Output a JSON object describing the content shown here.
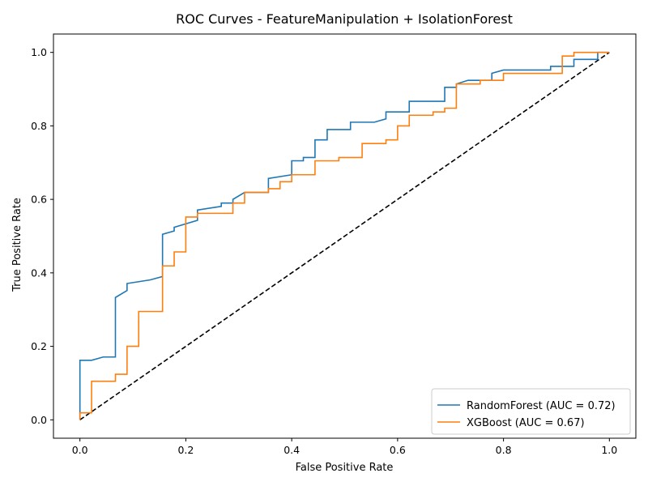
{
  "chart_data": {
    "type": "line",
    "title": "ROC Curves - FeatureManipulation + IsolationForest",
    "xlabel": "False Positive Rate",
    "ylabel": "True Positive Rate",
    "xlim": [
      -0.05,
      1.05
    ],
    "ylim": [
      -0.05,
      1.05
    ],
    "xticks": [
      0.0,
      0.2,
      0.4,
      0.6,
      0.8,
      1.0
    ],
    "yticks": [
      0.0,
      0.2,
      0.4,
      0.6,
      0.8,
      1.0
    ],
    "xtick_labels": [
      "0.0",
      "0.2",
      "0.4",
      "0.6",
      "0.8",
      "1.0"
    ],
    "ytick_labels": [
      "0.0",
      "0.2",
      "0.4",
      "0.6",
      "0.8",
      "1.0"
    ],
    "grid": false,
    "legend_position": "lower-right",
    "series": [
      {
        "name": "RandomForest (AUC = 0.72)",
        "color": "#1f77b4",
        "points": [
          [
            0.0,
            0.0
          ],
          [
            0.0,
            0.162
          ],
          [
            0.022,
            0.162
          ],
          [
            0.044,
            0.171
          ],
          [
            0.067,
            0.171
          ],
          [
            0.067,
            0.333
          ],
          [
            0.089,
            0.352
          ],
          [
            0.089,
            0.371
          ],
          [
            0.133,
            0.381
          ],
          [
            0.156,
            0.39
          ],
          [
            0.156,
            0.505
          ],
          [
            0.178,
            0.514
          ],
          [
            0.178,
            0.524
          ],
          [
            0.222,
            0.543
          ],
          [
            0.222,
            0.571
          ],
          [
            0.267,
            0.581
          ],
          [
            0.267,
            0.59
          ],
          [
            0.289,
            0.59
          ],
          [
            0.289,
            0.6
          ],
          [
            0.311,
            0.619
          ],
          [
            0.356,
            0.619
          ],
          [
            0.356,
            0.657
          ],
          [
            0.4,
            0.667
          ],
          [
            0.4,
            0.705
          ],
          [
            0.422,
            0.705
          ],
          [
            0.422,
            0.714
          ],
          [
            0.444,
            0.714
          ],
          [
            0.444,
            0.762
          ],
          [
            0.467,
            0.762
          ],
          [
            0.467,
            0.79
          ],
          [
            0.511,
            0.79
          ],
          [
            0.511,
            0.81
          ],
          [
            0.556,
            0.81
          ],
          [
            0.578,
            0.819
          ],
          [
            0.578,
            0.838
          ],
          [
            0.622,
            0.838
          ],
          [
            0.622,
            0.867
          ],
          [
            0.689,
            0.867
          ],
          [
            0.689,
            0.905
          ],
          [
            0.711,
            0.905
          ],
          [
            0.711,
            0.914
          ],
          [
            0.733,
            0.924
          ],
          [
            0.778,
            0.924
          ],
          [
            0.778,
            0.943
          ],
          [
            0.8,
            0.952
          ],
          [
            0.889,
            0.952
          ],
          [
            0.889,
            0.962
          ],
          [
            0.933,
            0.962
          ],
          [
            0.933,
            0.981
          ],
          [
            0.978,
            0.981
          ],
          [
            0.978,
            1.0
          ],
          [
            1.0,
            1.0
          ]
        ]
      },
      {
        "name": "XGBoost (AUC = 0.67)",
        "color": "#ff7f0e",
        "points": [
          [
            0.0,
            0.0
          ],
          [
            0.0,
            0.019
          ],
          [
            0.022,
            0.019
          ],
          [
            0.022,
            0.105
          ],
          [
            0.067,
            0.105
          ],
          [
            0.067,
            0.124
          ],
          [
            0.089,
            0.124
          ],
          [
            0.089,
            0.2
          ],
          [
            0.111,
            0.2
          ],
          [
            0.111,
            0.295
          ],
          [
            0.156,
            0.295
          ],
          [
            0.156,
            0.419
          ],
          [
            0.178,
            0.419
          ],
          [
            0.178,
            0.457
          ],
          [
            0.2,
            0.457
          ],
          [
            0.2,
            0.552
          ],
          [
            0.222,
            0.552
          ],
          [
            0.222,
            0.562
          ],
          [
            0.289,
            0.562
          ],
          [
            0.289,
            0.59
          ],
          [
            0.311,
            0.59
          ],
          [
            0.311,
            0.619
          ],
          [
            0.356,
            0.619
          ],
          [
            0.356,
            0.629
          ],
          [
            0.378,
            0.629
          ],
          [
            0.378,
            0.648
          ],
          [
            0.4,
            0.648
          ],
          [
            0.4,
            0.667
          ],
          [
            0.444,
            0.667
          ],
          [
            0.444,
            0.705
          ],
          [
            0.489,
            0.705
          ],
          [
            0.489,
            0.714
          ],
          [
            0.533,
            0.714
          ],
          [
            0.533,
            0.752
          ],
          [
            0.578,
            0.752
          ],
          [
            0.578,
            0.762
          ],
          [
            0.6,
            0.762
          ],
          [
            0.6,
            0.8
          ],
          [
            0.622,
            0.8
          ],
          [
            0.622,
            0.829
          ],
          [
            0.667,
            0.829
          ],
          [
            0.667,
            0.838
          ],
          [
            0.689,
            0.838
          ],
          [
            0.689,
            0.848
          ],
          [
            0.711,
            0.848
          ],
          [
            0.711,
            0.914
          ],
          [
            0.756,
            0.914
          ],
          [
            0.756,
            0.924
          ],
          [
            0.8,
            0.924
          ],
          [
            0.8,
            0.943
          ],
          [
            0.911,
            0.943
          ],
          [
            0.911,
            0.99
          ],
          [
            0.933,
            0.99
          ],
          [
            0.933,
            1.0
          ],
          [
            1.0,
            1.0
          ]
        ]
      }
    ],
    "reference_line": {
      "points": [
        [
          0.0,
          0.0
        ],
        [
          1.0,
          1.0
        ]
      ],
      "color": "#000000",
      "style": "dashed"
    }
  }
}
